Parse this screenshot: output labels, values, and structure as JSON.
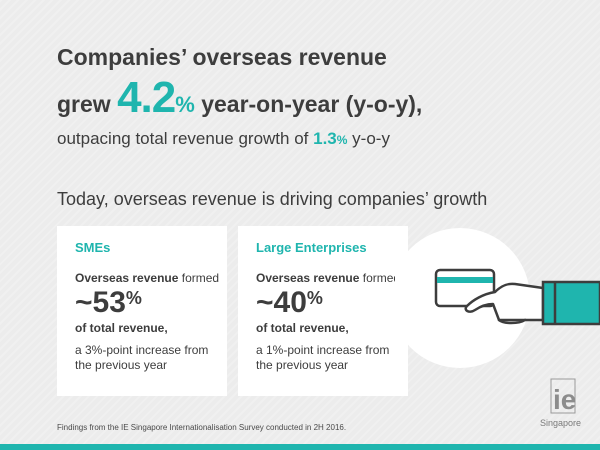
{
  "headline": {
    "line1": "Companies’ overseas revenue",
    "line2_prefix": "grew ",
    "line2_big": "4.2",
    "line2_pct": "%",
    "line2_suffix": " year-on-year (y-o-y),",
    "line3_prefix": "outpacing total revenue growth of ",
    "line3_value": "1.3",
    "line3_pct": "%",
    "line3_suffix": " y-o-y"
  },
  "subhead": "Today, overseas revenue is driving companies’ growth",
  "cards": [
    {
      "title": "SMEs",
      "formed_bold": "Overseas revenue",
      "formed_rest": " formed",
      "value": "~53",
      "pct": "%",
      "total": "of total revenue,",
      "increase": "a 3%-point increase from the previous year"
    },
    {
      "title": "Large Enterprises",
      "formed_bold": "Overseas revenue",
      "formed_rest": " formed",
      "value": "~40",
      "pct": "%",
      "total": "of total revenue,",
      "increase": "a 1%-point increase from the previous year"
    }
  ],
  "illustration": {
    "icon": "hand-holding-card-icon"
  },
  "logo": {
    "letters": "ie",
    "name": "Singapore"
  },
  "footnote": "Findings from the IE Singapore Internationalisation Survey conducted in 2H 2016.",
  "colors": {
    "accent": "#1fb5ae",
    "text": "#3d3d3d",
    "background": "#ececec"
  }
}
